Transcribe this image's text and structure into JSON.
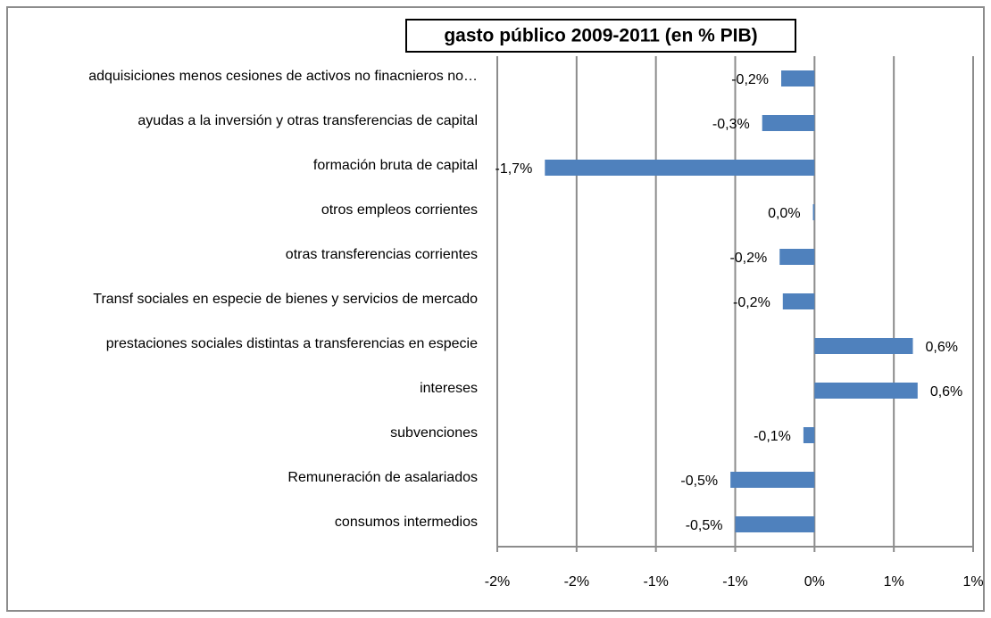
{
  "chart_data": {
    "type": "barh",
    "title": "gasto público 2009-2011 (en % PIB)",
    "categories": [
      "adquisiciones menos cesiones de activos no finacnieros no…",
      "ayudas a la inversión y otras transferencias de capital",
      "formación bruta de capital",
      "otros empleos corrientes",
      "otras transferencias corrientes",
      "Transf sociales en especie de bienes y servicios de mercado",
      "prestaciones sociales distintas a transferencias en especie",
      "intereses",
      "subvenciones",
      "Remuneración de asalariados",
      "consumos intermedios"
    ],
    "values": [
      -0.21,
      -0.33,
      -1.7,
      -0.01,
      -0.22,
      -0.2,
      0.62,
      0.65,
      -0.07,
      -0.53,
      -0.5
    ],
    "value_labels": [
      "-0,2%",
      "-0,3%",
      "-1,7%",
      "0,0%",
      "-0,2%",
      "-0,2%",
      "0,6%",
      "0,6%",
      "-0,1%",
      "-0,5%",
      "-0,5%"
    ],
    "color": "#4f81bd",
    "xlim": [
      -2,
      1
    ],
    "xticks": [
      {
        "value": -2,
        "label": "-2%"
      },
      {
        "value": -1.5,
        "label": "-2%"
      },
      {
        "value": -1,
        "label": "-1%"
      },
      {
        "value": -0.5,
        "label": "-1%"
      },
      {
        "value": 0,
        "label": "0%"
      },
      {
        "value": 0.5,
        "label": "1%"
      },
      {
        "value": 1,
        "label": "1%"
      }
    ],
    "grid": true
  }
}
